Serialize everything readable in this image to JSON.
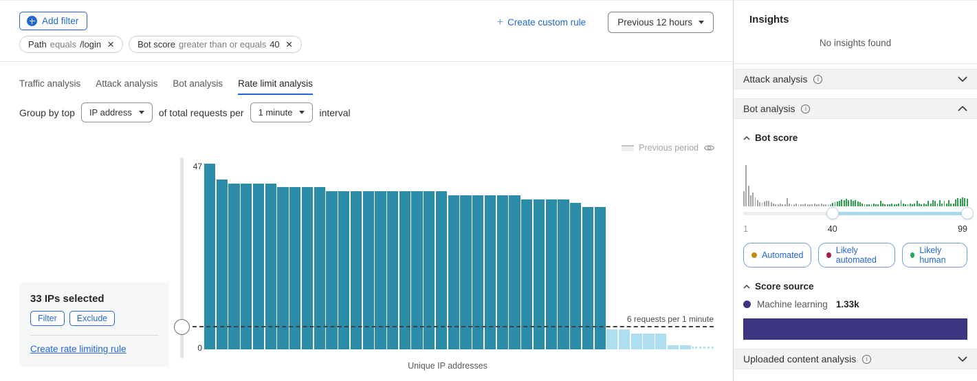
{
  "toolbar": {
    "add_filter": "Add filter",
    "create_custom_rule": "Create custom rule",
    "time_range": "Previous 12 hours"
  },
  "filters": [
    {
      "field": "Path",
      "operator": "equals",
      "value": "/login"
    },
    {
      "field": "Bot score",
      "operator": "greater than or equals",
      "value": "40"
    }
  ],
  "tabs": [
    {
      "label": "Traffic analysis",
      "active": false
    },
    {
      "label": "Attack analysis",
      "active": false
    },
    {
      "label": "Bot analysis",
      "active": false
    },
    {
      "label": "Rate limit analysis",
      "active": true
    }
  ],
  "group_by": {
    "prefix": "Group by top",
    "dimension": "IP address",
    "middle": "of total requests per",
    "interval": "1 minute",
    "suffix": "interval"
  },
  "legend": {
    "previous_period": "Previous period"
  },
  "selection_panel": {
    "title": "33 IPs selected",
    "filter_label": "Filter",
    "exclude_label": "Exclude",
    "link": "Create rate limiting rule"
  },
  "chart_data": [
    {
      "type": "bar",
      "title": "Requests per unique IP (rate limit analysis)",
      "xlabel": "Unique IP addresses",
      "ylabel": "",
      "ylim": [
        0,
        47
      ],
      "y_max_label": "47",
      "y_min_label": "0",
      "threshold": {
        "value": 6,
        "label": "6 requests per 1 minute"
      },
      "near_zero_dotted_tail": true,
      "series": [
        {
          "name": "selected-ips-above-threshold",
          "color": "#2b8ca9",
          "values": [
            47,
            43,
            42,
            42,
            42,
            42,
            41,
            41,
            41,
            41,
            40,
            40,
            40,
            40,
            40,
            40,
            40,
            40,
            40,
            40,
            39,
            39,
            39,
            39,
            39,
            39,
            38,
            38,
            38,
            38,
            37,
            36,
            36
          ]
        },
        {
          "name": "ips-below-threshold",
          "color": "#aedff0",
          "values": [
            5,
            5,
            4,
            4,
            4,
            1,
            1
          ]
        }
      ]
    },
    {
      "type": "bar",
      "title": "Bot score distribution",
      "x_range": [
        1,
        99
      ],
      "slider": {
        "min": 1,
        "max": 99,
        "from": 40,
        "to": 99
      },
      "series": [
        {
          "name": "scores-1-39",
          "color": "#a6a6a6",
          "values": [
            22,
            60,
            30,
            16,
            20,
            13,
            9,
            6,
            5,
            7,
            8,
            8,
            6,
            4,
            3,
            3,
            4,
            3,
            3,
            12,
            4,
            3,
            3,
            4,
            3,
            3,
            3,
            4,
            3,
            3,
            3,
            4,
            3,
            3,
            4,
            3,
            3,
            3,
            3
          ]
        },
        {
          "name": "scores-40-99",
          "color": "#2aa14b",
          "values": [
            5,
            6,
            7,
            8,
            10,
            9,
            11,
            9,
            10,
            8,
            9,
            7,
            6,
            4,
            3,
            3,
            3,
            3,
            4,
            3,
            3,
            8,
            4,
            3,
            3,
            3,
            4,
            3,
            3,
            4,
            9,
            4,
            3,
            3,
            4,
            3,
            4,
            8,
            4,
            3,
            4,
            3,
            8,
            4,
            9,
            8,
            4,
            9,
            4,
            8,
            4,
            9,
            4,
            4,
            10,
            12,
            11,
            13,
            12,
            11
          ]
        }
      ]
    }
  ],
  "sidebar": {
    "title": "Insights",
    "empty_message": "No insights found",
    "sections": [
      {
        "label": "Attack analysis",
        "state": "collapsed"
      },
      {
        "label": "Bot analysis",
        "state": "expanded"
      },
      {
        "label": "Uploaded content analysis",
        "state": "collapsed"
      }
    ],
    "bot_score": {
      "title": "Bot score",
      "slider_labels": [
        "1",
        "40",
        "99"
      ],
      "badges": [
        {
          "label": "Automated",
          "dot_color": "#c28a0e"
        },
        {
          "label": "Likely automated",
          "dot_color": "#a61e45"
        },
        {
          "label": "Likely human",
          "dot_color": "#27a35a"
        }
      ]
    },
    "score_source": {
      "title": "Score source",
      "items": [
        {
          "label": "Machine learning",
          "value": "1.33k",
          "color": "#3f3682"
        }
      ]
    }
  },
  "colors": {
    "accent_blue": "#2266d4",
    "bar_teal": "#2b8ca9",
    "bar_light_blue": "#aedff0",
    "score_source_purple": "#3f3682"
  }
}
